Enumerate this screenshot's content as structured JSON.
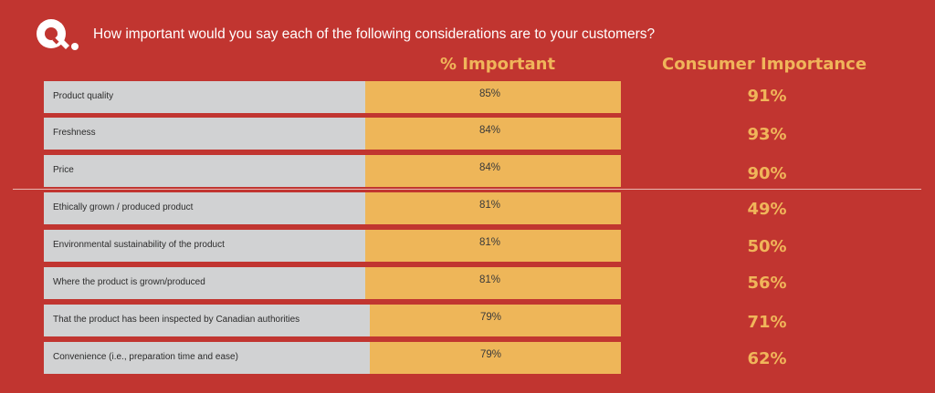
{
  "question_text": "How important would you say each of the following considerations are to your customers?",
  "chart_data": {
    "type": "table",
    "columns": [
      "% Important",
      "Consumer Importance"
    ],
    "rows": [
      {
        "label": "Product quality",
        "important": "85%",
        "consumer": "91%",
        "important_value": 85
      },
      {
        "label": "Freshness",
        "important": "84%",
        "consumer": "93%",
        "important_value": 84
      },
      {
        "label": "Price",
        "important": "84%",
        "consumer": "90%",
        "important_value": 84
      },
      {
        "label": "Ethically grown / produced product",
        "important": "81%",
        "consumer": "49%",
        "important_value": 81
      },
      {
        "label": "Environmental sustainability of the product",
        "important": "81%",
        "consumer": "50%",
        "important_value": 81
      },
      {
        "label": "Where the product is grown/produced",
        "important": "81%",
        "consumer": "56%",
        "important_value": 81
      },
      {
        "label": "That the product has been inspected by Canadian authorities",
        "important": "79%",
        "consumer": "71%",
        "important_value": 79
      },
      {
        "label": "Convenience (i.e., preparation time and ease)",
        "important": "79%",
        "consumer": "62%",
        "important_value": 79
      }
    ]
  },
  "colors": {
    "background": "#c13530",
    "label_cell": "#d1d2d3",
    "value_cell": "#eeb659",
    "accent_text": "#f0b55a"
  }
}
